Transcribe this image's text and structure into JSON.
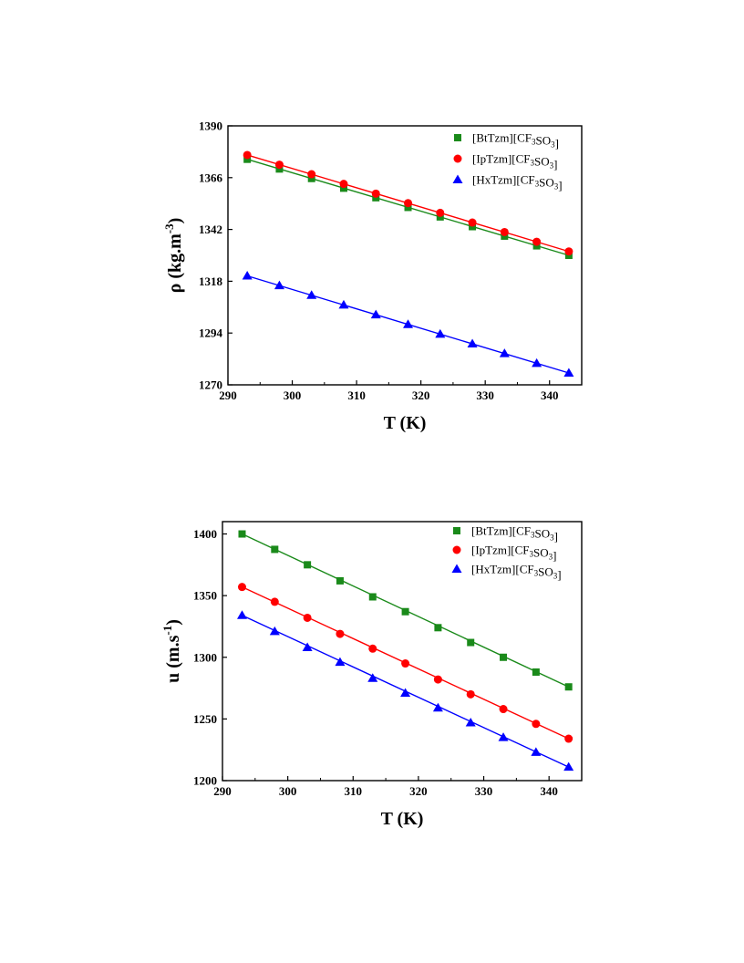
{
  "chart_data": [
    {
      "type": "scatter",
      "title": "",
      "xlabel": "T (K)",
      "ylabel_parts": [
        "ρ (kg.m",
        "-3",
        ")"
      ],
      "xlim": [
        290,
        345
      ],
      "ylim": [
        1270,
        1390
      ],
      "xticks": [
        290,
        300,
        310,
        320,
        330,
        340
      ],
      "yticks": [
        1270,
        1294,
        1318,
        1342,
        1366,
        1390
      ],
      "x": [
        293,
        298,
        303,
        308,
        313,
        318,
        323,
        328,
        333,
        338,
        343
      ],
      "legend_position": "top-right",
      "grid": false,
      "series": [
        {
          "name": "[BtTzm][CF3SO3]",
          "color": "#1a8a1a",
          "marker": "square",
          "values": [
            1374.5,
            1370.0,
            1365.6,
            1361.1,
            1356.7,
            1352.2,
            1347.8,
            1343.3,
            1338.9,
            1334.4,
            1330.0
          ]
        },
        {
          "name": "[IpTzm][CF3SO3]",
          "color": "#ff0000",
          "marker": "circle",
          "values": [
            1376.5,
            1372.0,
            1367.6,
            1363.1,
            1358.6,
            1354.2,
            1349.7,
            1345.2,
            1340.8,
            1336.3,
            1331.8
          ]
        },
        {
          "name": "[HxTzm][CF3SO3]",
          "color": "#0000ff",
          "marker": "triangle",
          "values": [
            1320.5,
            1316.0,
            1311.5,
            1307.0,
            1302.5,
            1298.0,
            1293.5,
            1289.0,
            1284.5,
            1280.0,
            1275.5
          ]
        }
      ]
    },
    {
      "type": "scatter",
      "title": "",
      "xlabel": "T (K)",
      "ylabel_parts": [
        "u (m.s",
        "-1",
        ")"
      ],
      "xlim": [
        290,
        345
      ],
      "ylim": [
        1200,
        1410
      ],
      "xticks": [
        290,
        300,
        310,
        320,
        330,
        340
      ],
      "yticks": [
        1200,
        1250,
        1300,
        1350,
        1400
      ],
      "x": [
        293,
        298,
        303,
        308,
        313,
        318,
        323,
        328,
        333,
        338,
        343
      ],
      "legend_position": "top-right",
      "grid": false,
      "series": [
        {
          "name": "[BtTzm][CF3SO3]",
          "color": "#1a8a1a",
          "marker": "square",
          "values": [
            1400,
            1387.5,
            1375,
            1362,
            1349,
            1337,
            1324,
            1312,
            1300,
            1288,
            1276
          ]
        },
        {
          "name": "[IpTzm][CF3SO3]",
          "color": "#ff0000",
          "marker": "circle",
          "values": [
            1357,
            1345,
            1332,
            1319,
            1307,
            1295,
            1282,
            1270,
            1258,
            1246,
            1234
          ]
        },
        {
          "name": "[HxTzm][CF3SO3]",
          "color": "#0000ff",
          "marker": "triangle",
          "values": [
            1334,
            1321,
            1308,
            1296,
            1283,
            1271,
            1259,
            1247,
            1235,
            1223,
            1211
          ]
        }
      ]
    }
  ]
}
